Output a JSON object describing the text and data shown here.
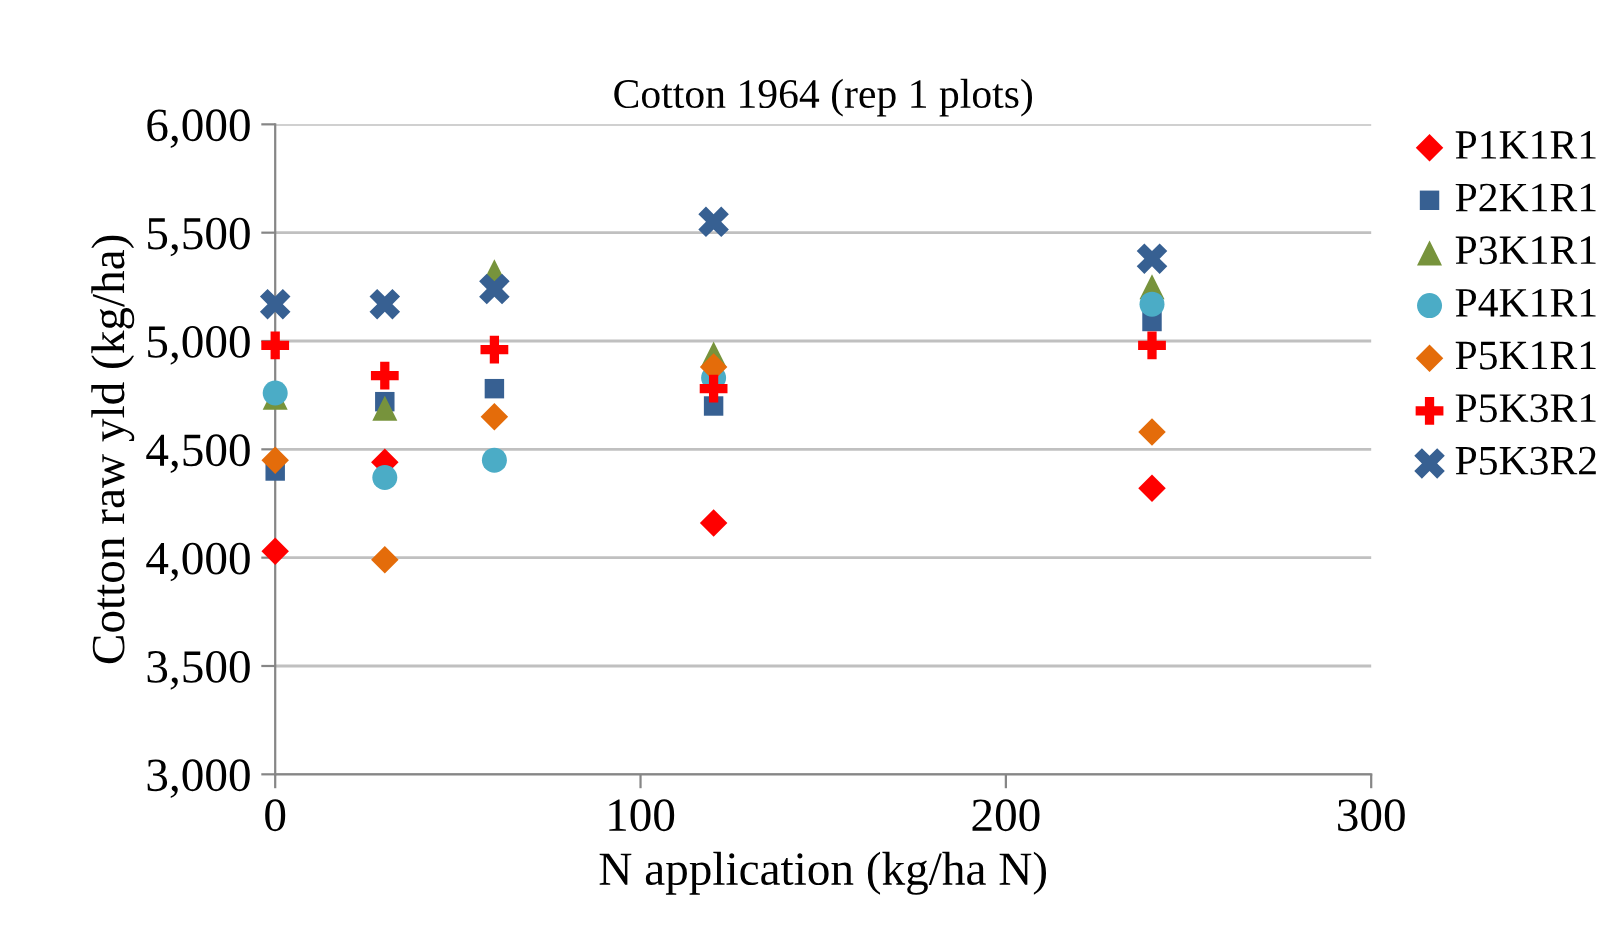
{
  "chart_data": {
    "type": "scatter",
    "title": "Cotton 1964 (rep 1 plots)",
    "xlabel": "N application (kg/ha N)",
    "ylabel": "Cotton raw yld (kg/ha)",
    "x": [
      0,
      30,
      60,
      120,
      240
    ],
    "series": [
      {
        "name": "P1K1R1",
        "color": "#ff0000",
        "marker": "diamond",
        "values": [
          4030,
          4440,
          null,
          4160,
          4320
        ]
      },
      {
        "name": "P2K1R1",
        "color": "#376092",
        "marker": "square",
        "values": [
          4400,
          4720,
          4780,
          4700,
          5090
        ]
      },
      {
        "name": "P3K1R1",
        "color": "#77933c",
        "marker": "triangle",
        "values": [
          4740,
          4690,
          5320,
          4940,
          5250
        ]
      },
      {
        "name": "P4K1R1",
        "color": "#4bacc6",
        "marker": "circle",
        "values": [
          4760,
          4370,
          4450,
          4830,
          5170
        ]
      },
      {
        "name": "P5K1R1",
        "color": "#e46c0a",
        "marker": "diamond",
        "values": [
          4450,
          3990,
          4650,
          4880,
          4580
        ]
      },
      {
        "name": "P5K3R1",
        "color": "#ff0000",
        "marker": "plus",
        "values": [
          4980,
          4840,
          4960,
          4780,
          4980
        ]
      },
      {
        "name": "P5K3R2",
        "color": "#376092",
        "marker": "cross",
        "values": [
          5170,
          5170,
          5240,
          5550,
          5380
        ]
      }
    ],
    "xlim": [
      0,
      300
    ],
    "xticks": [
      0,
      100,
      200,
      300
    ],
    "ylim": [
      3000,
      6000
    ],
    "yticks": [
      {
        "value": 3000,
        "label": "3,000"
      },
      {
        "value": 3500,
        "label": "3,500"
      },
      {
        "value": 4000,
        "label": "4,000"
      },
      {
        "value": 4500,
        "label": "4,500"
      },
      {
        "value": 5000,
        "label": "5,000"
      },
      {
        "value": 5500,
        "label": "5,500"
      },
      {
        "value": 6000,
        "label": "6,000"
      }
    ],
    "grid": "y",
    "legend": "right"
  }
}
